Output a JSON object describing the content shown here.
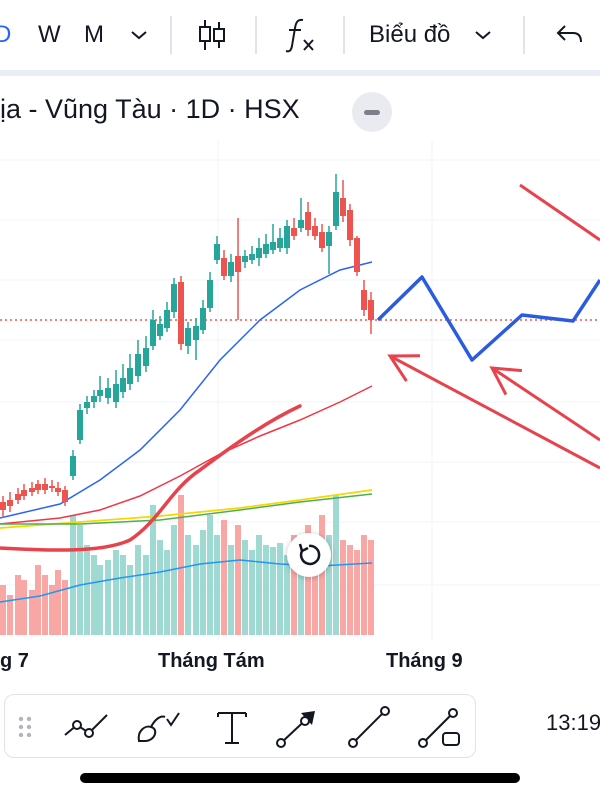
{
  "toolbar": {
    "interval_partial": "D",
    "interval_w": "W",
    "interval_m": "M",
    "chart_type_label": "Biểu đồ"
  },
  "symbol": {
    "title": "ịa - Vũng Tàu · 1D · HSX"
  },
  "time_axis": {
    "ticks": [
      "g 7",
      "Tháng Tám",
      "Tháng 9"
    ]
  },
  "status": {
    "clock": "13:19"
  },
  "colors": {
    "up": "#26a69a",
    "down": "#ef5350",
    "ma_blue": "#2962ff",
    "ma_red": "#f23645",
    "ma_yellow": "#f5d800",
    "ma_green": "#4caf50",
    "drawing_blue": "#2b5bdf",
    "drawing_red": "#e8424d",
    "accent": "#2962ff"
  },
  "icons": {
    "interval_more": "chevron-down-icon",
    "candles": "candlestick-icon",
    "indicators": "fx-icon",
    "chart_type_more": "chevron-down-icon",
    "undo": "undo-icon",
    "reset_view": "reset-icon",
    "drag": "drag-handle-icon",
    "trend_line": "trendline-icon",
    "brush": "brush-icon",
    "text": "text-icon",
    "arrow": "arrow-icon",
    "ray": "line-icon",
    "callout": "callout-line-icon"
  }
}
